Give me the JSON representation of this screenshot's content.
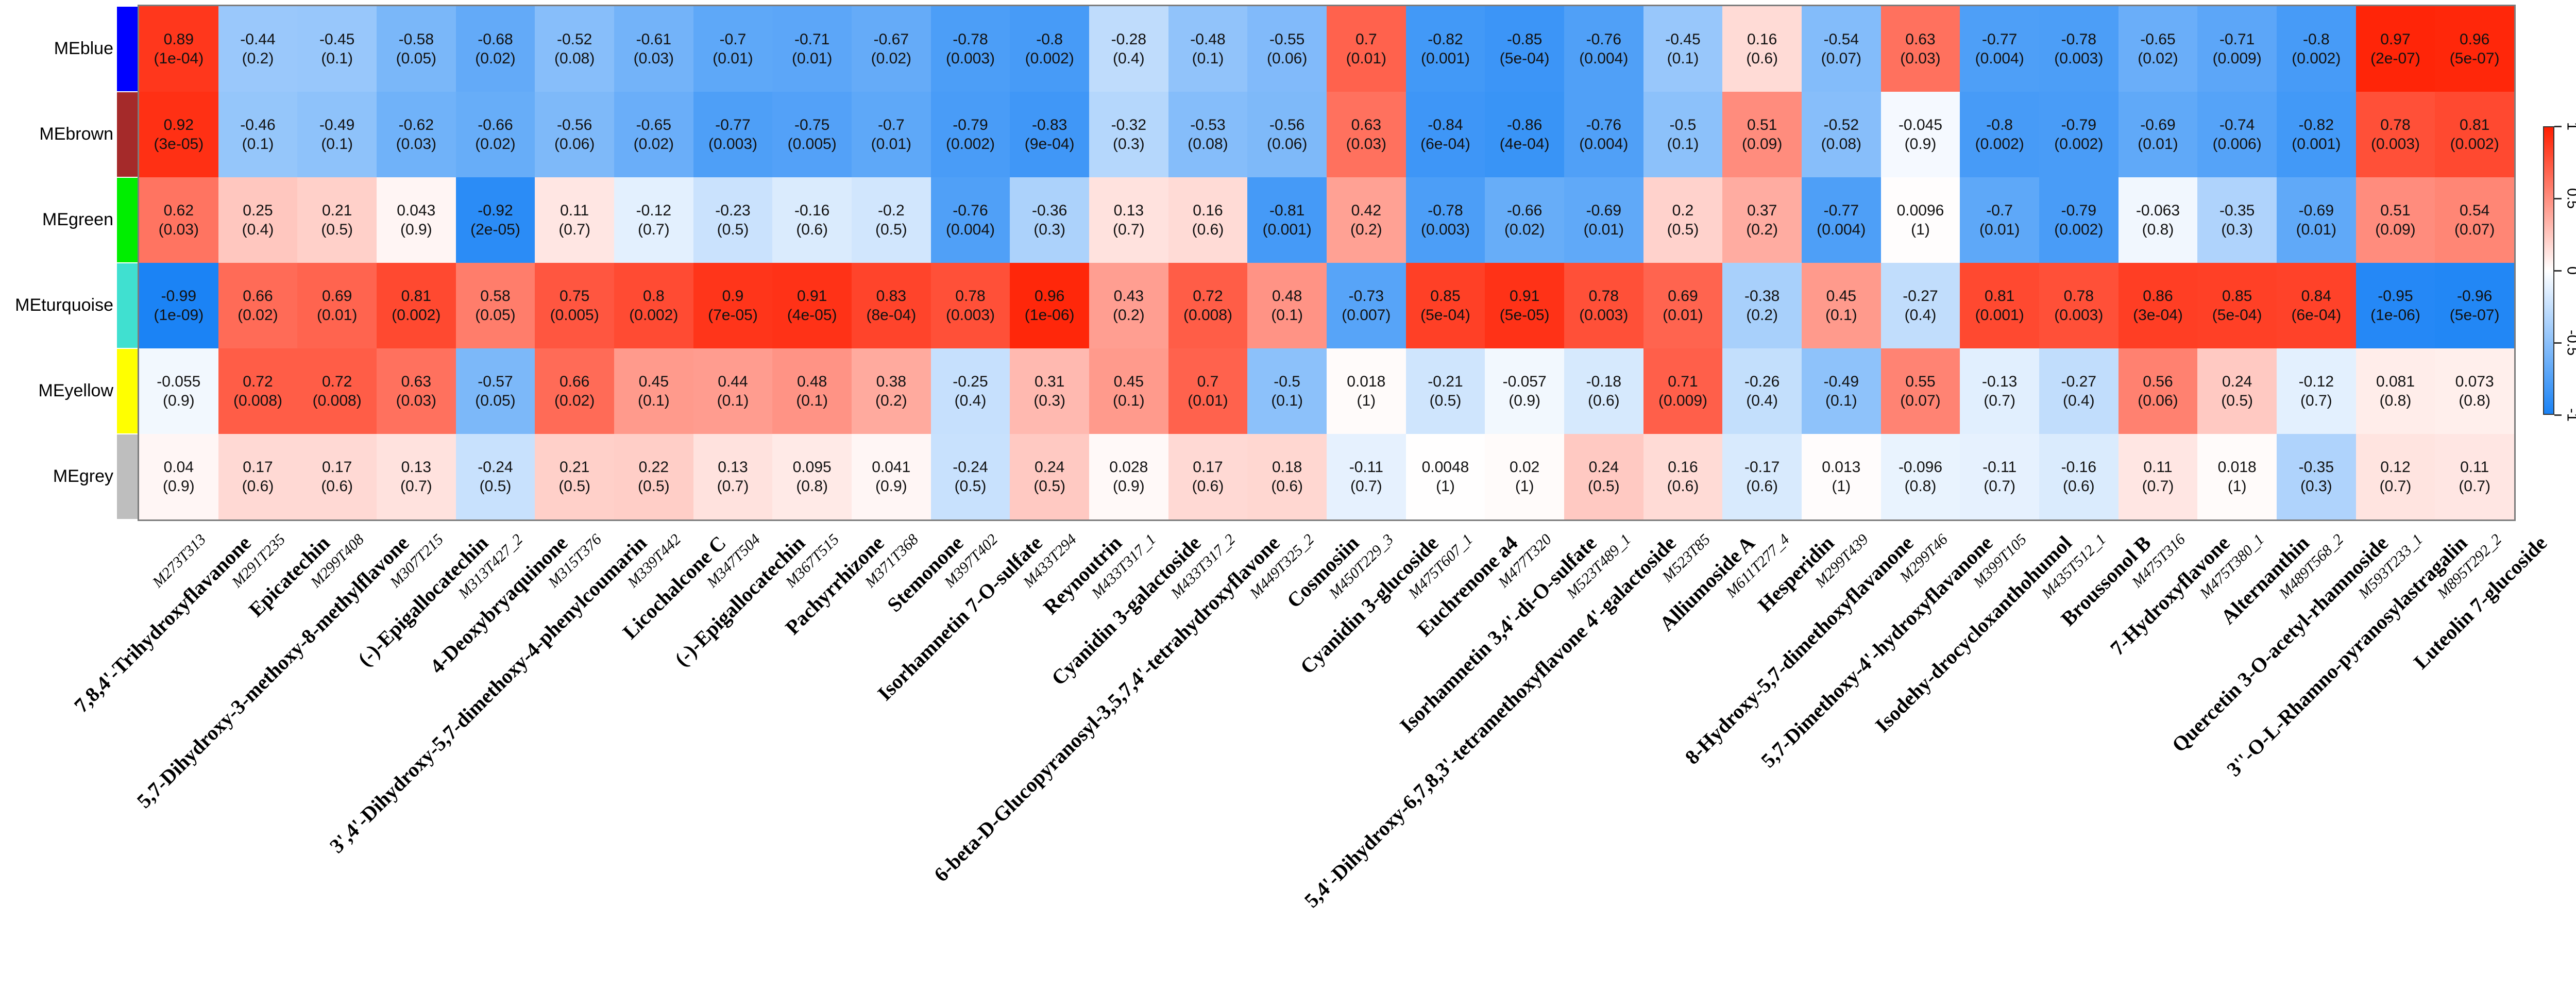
{
  "chart_data": {
    "type": "heatmap",
    "title": "",
    "description": "WGCNA module-trait correlation heatmap: module eigengenes (rows) vs metabolites (columns); each cell shows correlation and (p-value)",
    "legend_position": "right",
    "grid": false,
    "value_range": [
      -1,
      1
    ],
    "accent_colors": {
      "positive_max": "#FF1E00",
      "zero": "#FFFFFF",
      "negative_max": "#1982F5"
    },
    "rows": [
      {
        "label": "MEblue",
        "module_color": "#0000FF"
      },
      {
        "label": "MEbrown",
        "module_color": "#A52A2A"
      },
      {
        "label": "MEgreen",
        "module_color": "#00EE00"
      },
      {
        "label": "MEturquoise",
        "module_color": "#40E0D0"
      },
      {
        "label": "MEyellow",
        "module_color": "#FFFF00"
      },
      {
        "label": "MEgrey",
        "module_color": "#BEBEBE"
      }
    ],
    "columns": [
      {
        "id": "M273T313",
        "name": "7,8,4'-Trihydroxyflavanone"
      },
      {
        "id": "M291T235",
        "name": "Epicatechin"
      },
      {
        "id": "M299T408",
        "name": "5,7-Dihydroxy-3-methoxy-8-methylflavone"
      },
      {
        "id": "M307T215",
        "name": "(-)-Epigallocatechin"
      },
      {
        "id": "M313T427_2",
        "name": "4-Deoxybryaquinone"
      },
      {
        "id": "M315T376",
        "name": "3',4'-Dihydroxy-5,7-dimethoxy-4-phenylcoumarin"
      },
      {
        "id": "M339T442",
        "name": "Licochalcone C"
      },
      {
        "id": "M347T504",
        "name": "(-)-Epigallocatechin"
      },
      {
        "id": "M367T515",
        "name": "Pachyrrhizone"
      },
      {
        "id": "M371T368",
        "name": "Stemonone"
      },
      {
        "id": "M397T402",
        "name": "Isorhamnetin 7-O-sulfate"
      },
      {
        "id": "M433T294",
        "name": "Reynoutrin"
      },
      {
        "id": "M433T317_1",
        "name": "Cyanidin 3-galactoside"
      },
      {
        "id": "M433T317_2",
        "name": "6-beta-D-Glucopyranosyl-3,5,7,4'-tetrahydroxyflavone"
      },
      {
        "id": "M449T325_2",
        "name": "Cosmosiin"
      },
      {
        "id": "M450T229_3",
        "name": "Cyanidin 3-glucoside"
      },
      {
        "id": "M475T607_1",
        "name": "Euchrenone a4"
      },
      {
        "id": "M477T320",
        "name": "Isorhamnetin 3,4'-di-O-sulfate"
      },
      {
        "id": "M523T489_1",
        "name": "5,4'-Dihydroxy-6,7,8,3'-tetramethoxyflavone 4'-galactoside"
      },
      {
        "id": "M523T85",
        "name": "Alliumoside A"
      },
      {
        "id": "M611T277_4",
        "name": "Hesperidin"
      },
      {
        "id": "M299T439",
        "name": "8-Hydroxy-5,7-dimethoxyflavanone"
      },
      {
        "id": "M299T46",
        "name": "5,7-Dimethoxy-4'-hydroxyflavanone"
      },
      {
        "id": "M399T105",
        "name": "Isodehy-drocycloxanthohumol"
      },
      {
        "id": "M435T512_1",
        "name": "Broussonol B"
      },
      {
        "id": "M475T316",
        "name": "7-Hydroxyflavone"
      },
      {
        "id": "M475T380_1",
        "name": "Alternanthin"
      },
      {
        "id": "M489T568_2",
        "name": "Quercetin 3-O-acetyl-rhamnoside"
      },
      {
        "id": "M593T233_1",
        "name": "3''-O-L-Rhamno-pyranosylastragalin"
      },
      {
        "id": "M895T292_2",
        "name": "Luteolin 7-glucoside"
      }
    ],
    "cells": [
      [
        [
          "0.89",
          "(1e-04)"
        ],
        [
          "-0.44",
          "(0.2)"
        ],
        [
          "-0.45",
          "(0.1)"
        ],
        [
          "-0.58",
          "(0.05)"
        ],
        [
          "-0.68",
          "(0.02)"
        ],
        [
          "-0.52",
          "(0.08)"
        ],
        [
          "-0.61",
          "(0.03)"
        ],
        [
          "-0.7",
          "(0.01)"
        ],
        [
          "-0.71",
          "(0.01)"
        ],
        [
          "-0.67",
          "(0.02)"
        ],
        [
          "-0.78",
          "(0.003)"
        ],
        [
          "-0.8",
          "(0.002)"
        ],
        [
          "-0.28",
          "(0.4)"
        ],
        [
          "-0.48",
          "(0.1)"
        ],
        [
          "-0.55",
          "(0.06)"
        ],
        [
          "0.7",
          "(0.01)"
        ],
        [
          "-0.82",
          "(0.001)"
        ],
        [
          "-0.85",
          "(5e-04)"
        ],
        [
          "-0.76",
          "(0.004)"
        ],
        [
          "-0.45",
          "(0.1)"
        ],
        [
          "0.16",
          "(0.6)"
        ],
        [
          "-0.54",
          "(0.07)"
        ],
        [
          "0.63",
          "(0.03)"
        ],
        [
          "-0.77",
          "(0.004)"
        ],
        [
          "-0.78",
          "(0.003)"
        ],
        [
          "-0.65",
          "(0.02)"
        ],
        [
          "-0.71",
          "(0.009)"
        ],
        [
          "-0.8",
          "(0.002)"
        ],
        [
          "0.97",
          "(2e-07)"
        ],
        [
          "0.96",
          "(5e-07)"
        ]
      ],
      [
        [
          "0.92",
          "(3e-05)"
        ],
        [
          "-0.46",
          "(0.1)"
        ],
        [
          "-0.49",
          "(0.1)"
        ],
        [
          "-0.62",
          "(0.03)"
        ],
        [
          "-0.66",
          "(0.02)"
        ],
        [
          "-0.56",
          "(0.06)"
        ],
        [
          "-0.65",
          "(0.02)"
        ],
        [
          "-0.77",
          "(0.003)"
        ],
        [
          "-0.75",
          "(0.005)"
        ],
        [
          "-0.7",
          "(0.01)"
        ],
        [
          "-0.79",
          "(0.002)"
        ],
        [
          "-0.83",
          "(9e-04)"
        ],
        [
          "-0.32",
          "(0.3)"
        ],
        [
          "-0.53",
          "(0.08)"
        ],
        [
          "-0.56",
          "(0.06)"
        ],
        [
          "0.63",
          "(0.03)"
        ],
        [
          "-0.84",
          "(6e-04)"
        ],
        [
          "-0.86",
          "(4e-04)"
        ],
        [
          "-0.76",
          "(0.004)"
        ],
        [
          "-0.5",
          "(0.1)"
        ],
        [
          "0.51",
          "(0.09)"
        ],
        [
          "-0.52",
          "(0.08)"
        ],
        [
          "-0.045",
          "(0.9)"
        ],
        [
          "-0.8",
          "(0.002)"
        ],
        [
          "-0.79",
          "(0.002)"
        ],
        [
          "-0.69",
          "(0.01)"
        ],
        [
          "-0.74",
          "(0.006)"
        ],
        [
          "-0.82",
          "(0.001)"
        ],
        [
          "0.78",
          "(0.003)"
        ],
        [
          "0.81",
          "(0.002)"
        ]
      ],
      [
        [
          "0.62",
          "(0.03)"
        ],
        [
          "0.25",
          "(0.4)"
        ],
        [
          "0.21",
          "(0.5)"
        ],
        [
          "0.043",
          "(0.9)"
        ],
        [
          "-0.92",
          "(2e-05)"
        ],
        [
          "0.11",
          "(0.7)"
        ],
        [
          "-0.12",
          "(0.7)"
        ],
        [
          "-0.23",
          "(0.5)"
        ],
        [
          "-0.16",
          "(0.6)"
        ],
        [
          "-0.2",
          "(0.5)"
        ],
        [
          "-0.76",
          "(0.004)"
        ],
        [
          "-0.36",
          "(0.3)"
        ],
        [
          "0.13",
          "(0.7)"
        ],
        [
          "0.16",
          "(0.6)"
        ],
        [
          "-0.81",
          "(0.001)"
        ],
        [
          "0.42",
          "(0.2)"
        ],
        [
          "-0.78",
          "(0.003)"
        ],
        [
          "-0.66",
          "(0.02)"
        ],
        [
          "-0.69",
          "(0.01)"
        ],
        [
          "0.2",
          "(0.5)"
        ],
        [
          "0.37",
          "(0.2)"
        ],
        [
          "-0.77",
          "(0.004)"
        ],
        [
          "0.0096",
          "(1)"
        ],
        [
          "-0.7",
          "(0.01)"
        ],
        [
          "-0.79",
          "(0.002)"
        ],
        [
          "-0.063",
          "(0.8)"
        ],
        [
          "-0.35",
          "(0.3)"
        ],
        [
          "-0.69",
          "(0.01)"
        ],
        [
          "0.51",
          "(0.09)"
        ],
        [
          "0.54",
          "(0.07)"
        ]
      ],
      [
        [
          "-0.99",
          "(1e-09)"
        ],
        [
          "0.66",
          "(0.02)"
        ],
        [
          "0.69",
          "(0.01)"
        ],
        [
          "0.81",
          "(0.002)"
        ],
        [
          "0.58",
          "(0.05)"
        ],
        [
          "0.75",
          "(0.005)"
        ],
        [
          "0.8",
          "(0.002)"
        ],
        [
          "0.9",
          "(7e-05)"
        ],
        [
          "0.91",
          "(4e-05)"
        ],
        [
          "0.83",
          "(8e-04)"
        ],
        [
          "0.78",
          "(0.003)"
        ],
        [
          "0.96",
          "(1e-06)"
        ],
        [
          "0.43",
          "(0.2)"
        ],
        [
          "0.72",
          "(0.008)"
        ],
        [
          "0.48",
          "(0.1)"
        ],
        [
          "-0.73",
          "(0.007)"
        ],
        [
          "0.85",
          "(5e-04)"
        ],
        [
          "0.91",
          "(5e-05)"
        ],
        [
          "0.78",
          "(0.003)"
        ],
        [
          "0.69",
          "(0.01)"
        ],
        [
          "-0.38",
          "(0.2)"
        ],
        [
          "0.45",
          "(0.1)"
        ],
        [
          "-0.27",
          "(0.4)"
        ],
        [
          "0.81",
          "(0.001)"
        ],
        [
          "0.78",
          "(0.003)"
        ],
        [
          "0.86",
          "(3e-04)"
        ],
        [
          "0.85",
          "(5e-04)"
        ],
        [
          "0.84",
          "(6e-04)"
        ],
        [
          "-0.95",
          "(1e-06)"
        ],
        [
          "-0.96",
          "(5e-07)"
        ]
      ],
      [
        [
          "-0.055",
          "(0.9)"
        ],
        [
          "0.72",
          "(0.008)"
        ],
        [
          "0.72",
          "(0.008)"
        ],
        [
          "0.63",
          "(0.03)"
        ],
        [
          "-0.57",
          "(0.05)"
        ],
        [
          "0.66",
          "(0.02)"
        ],
        [
          "0.45",
          "(0.1)"
        ],
        [
          "0.44",
          "(0.1)"
        ],
        [
          "0.48",
          "(0.1)"
        ],
        [
          "0.38",
          "(0.2)"
        ],
        [
          "-0.25",
          "(0.4)"
        ],
        [
          "0.31",
          "(0.3)"
        ],
        [
          "0.45",
          "(0.1)"
        ],
        [
          "0.7",
          "(0.01)"
        ],
        [
          "-0.5",
          "(0.1)"
        ],
        [
          "0.018",
          "(1)"
        ],
        [
          "-0.21",
          "(0.5)"
        ],
        [
          "-0.057",
          "(0.9)"
        ],
        [
          "-0.18",
          "(0.6)"
        ],
        [
          "0.71",
          "(0.009)"
        ],
        [
          "-0.26",
          "(0.4)"
        ],
        [
          "-0.49",
          "(0.1)"
        ],
        [
          "0.55",
          "(0.07)"
        ],
        [
          "-0.13",
          "(0.7)"
        ],
        [
          "-0.27",
          "(0.4)"
        ],
        [
          "0.56",
          "(0.06)"
        ],
        [
          "0.24",
          "(0.5)"
        ],
        [
          "-0.12",
          "(0.7)"
        ],
        [
          "0.081",
          "(0.8)"
        ],
        [
          "0.073",
          "(0.8)"
        ]
      ],
      [
        [
          "0.04",
          "(0.9)"
        ],
        [
          "0.17",
          "(0.6)"
        ],
        [
          "0.17",
          "(0.6)"
        ],
        [
          "0.13",
          "(0.7)"
        ],
        [
          "-0.24",
          "(0.5)"
        ],
        [
          "0.21",
          "(0.5)"
        ],
        [
          "0.22",
          "(0.5)"
        ],
        [
          "0.13",
          "(0.7)"
        ],
        [
          "0.095",
          "(0.8)"
        ],
        [
          "0.041",
          "(0.9)"
        ],
        [
          "-0.24",
          "(0.5)"
        ],
        [
          "0.24",
          "(0.5)"
        ],
        [
          "0.028",
          "(0.9)"
        ],
        [
          "0.17",
          "(0.6)"
        ],
        [
          "0.18",
          "(0.6)"
        ],
        [
          "-0.11",
          "(0.7)"
        ],
        [
          "0.0048",
          "(1)"
        ],
        [
          "0.02",
          "(1)"
        ],
        [
          "0.24",
          "(0.5)"
        ],
        [
          "0.16",
          "(0.6)"
        ],
        [
          "-0.17",
          "(0.6)"
        ],
        [
          "0.013",
          "(1)"
        ],
        [
          "-0.096",
          "(0.8)"
        ],
        [
          "-0.11",
          "(0.7)"
        ],
        [
          "-0.16",
          "(0.6)"
        ],
        [
          "0.11",
          "(0.7)"
        ],
        [
          "0.018",
          "(1)"
        ],
        [
          "-0.35",
          "(0.3)"
        ],
        [
          "0.12",
          "(0.7)"
        ],
        [
          "0.11",
          "(0.7)"
        ]
      ]
    ],
    "colorbar": {
      "tick_labels": [
        "1",
        "0.5",
        "0",
        "-0.5",
        "-1"
      ],
      "top_color": "#FF1E00",
      "mid_color": "#FFFFFF",
      "bottom_color": "#1982F5"
    }
  }
}
